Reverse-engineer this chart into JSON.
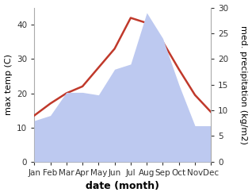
{
  "months": [
    "Jan",
    "Feb",
    "Mar",
    "Apr",
    "May",
    "Jun",
    "Jul",
    "Aug",
    "Sep",
    "Oct",
    "Nov",
    "Dec"
  ],
  "max_temp": [
    13.5,
    17.0,
    20.0,
    22.0,
    27.5,
    33.0,
    42.0,
    40.5,
    35.0,
    27.0,
    19.5,
    14.5
  ],
  "precipitation": [
    8.0,
    9.0,
    13.5,
    13.5,
    13.0,
    18.0,
    19.0,
    29.0,
    24.0,
    15.0,
    7.0,
    7.0
  ],
  "temp_color": "#c0392b",
  "precip_fill_color": "#bdc9f0",
  "temp_ylim": [
    0,
    45
  ],
  "precip_ylim": [
    0,
    30
  ],
  "temp_yticks": [
    0,
    10,
    20,
    30,
    40
  ],
  "precip_yticks": [
    0,
    5,
    10,
    15,
    20,
    25,
    30
  ],
  "xlabel": "date (month)",
  "ylabel_left": "max temp (C)",
  "ylabel_right": "med. precipitation (kg/m2)",
  "bg_color": "#ffffff",
  "xlabel_fontsize": 9,
  "ylabel_fontsize": 8,
  "tick_fontsize": 7.5,
  "line_width": 1.8
}
